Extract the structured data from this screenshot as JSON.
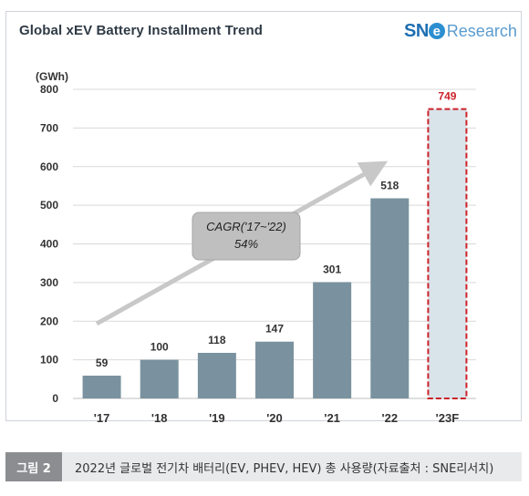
{
  "chart_data": {
    "type": "bar",
    "title": "Global xEV Battery Installment Trend",
    "ylabel": "(GWh)",
    "xlabel": "",
    "categories": [
      "'17",
      "'18",
      "'19",
      "'20",
      "'21",
      "'22",
      "'23F"
    ],
    "values": [
      59,
      100,
      118,
      147,
      301,
      518,
      749
    ],
    "value_labels": [
      "59",
      "100",
      "118",
      "147",
      "301",
      "518",
      "749"
    ],
    "forecast_index": 6,
    "ylim": [
      0,
      800
    ],
    "yticks": [
      0,
      100,
      200,
      300,
      400,
      500,
      600,
      700,
      800
    ],
    "grid": true,
    "legend": "none",
    "annotation": {
      "line1": "CAGR('17~'22)",
      "line2": "54%"
    },
    "colors": {
      "bar": "#7a929f",
      "forecast_fill": "#d9e3ea",
      "forecast_border": "#cc2229",
      "forecast_label": "#cc2229",
      "grid": "#d9d9d9",
      "arrow": "#c8c8c8",
      "annotation_box": "#bfbfbf"
    }
  },
  "logo": {
    "brand_sn": "SN",
    "brand_e": "e",
    "brand_rest": "Research"
  },
  "caption": {
    "label": "그림 2",
    "text": "2022년 글로벌 전기차 배터리(EV, PHEV, HEV) 총 사용량(자료출처 : SNE리서치)"
  }
}
